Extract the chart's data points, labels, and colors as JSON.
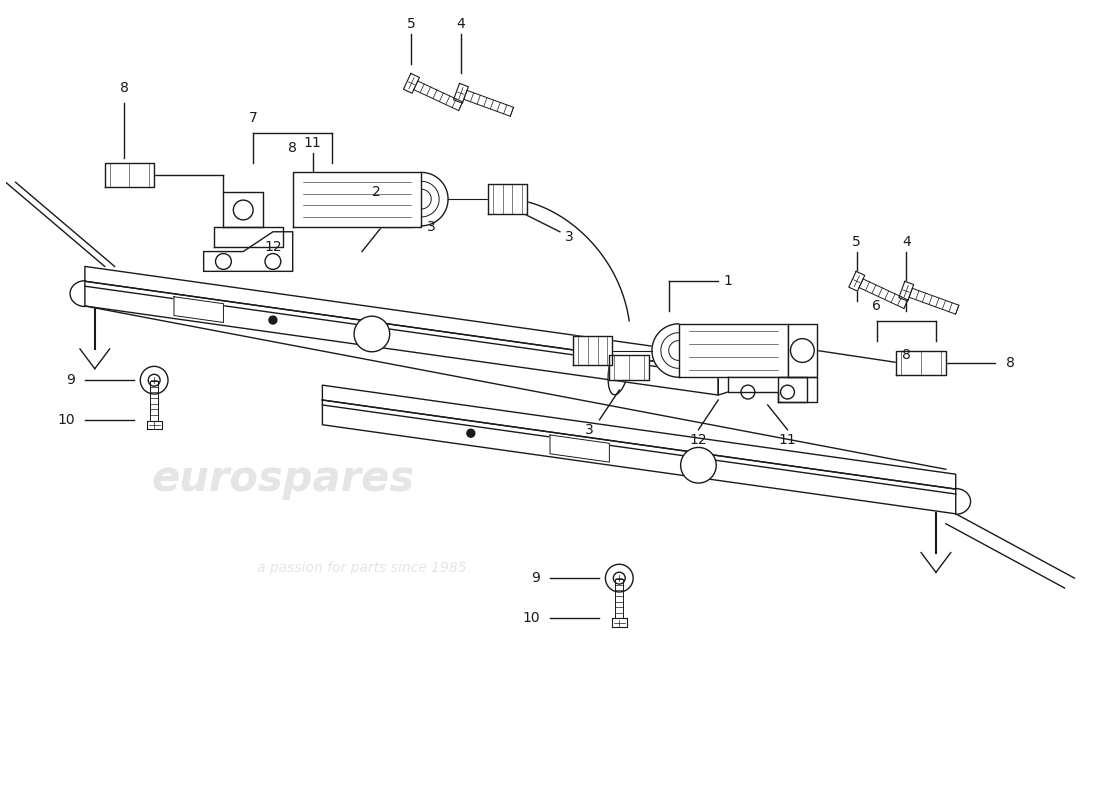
{
  "background_color": "#ffffff",
  "line_color": "#1a1a1a",
  "watermark1": "eurospares",
  "watermark2": "a passion for parts since 1985",
  "fig_width": 11.0,
  "fig_height": 8.0,
  "dpi": 100
}
